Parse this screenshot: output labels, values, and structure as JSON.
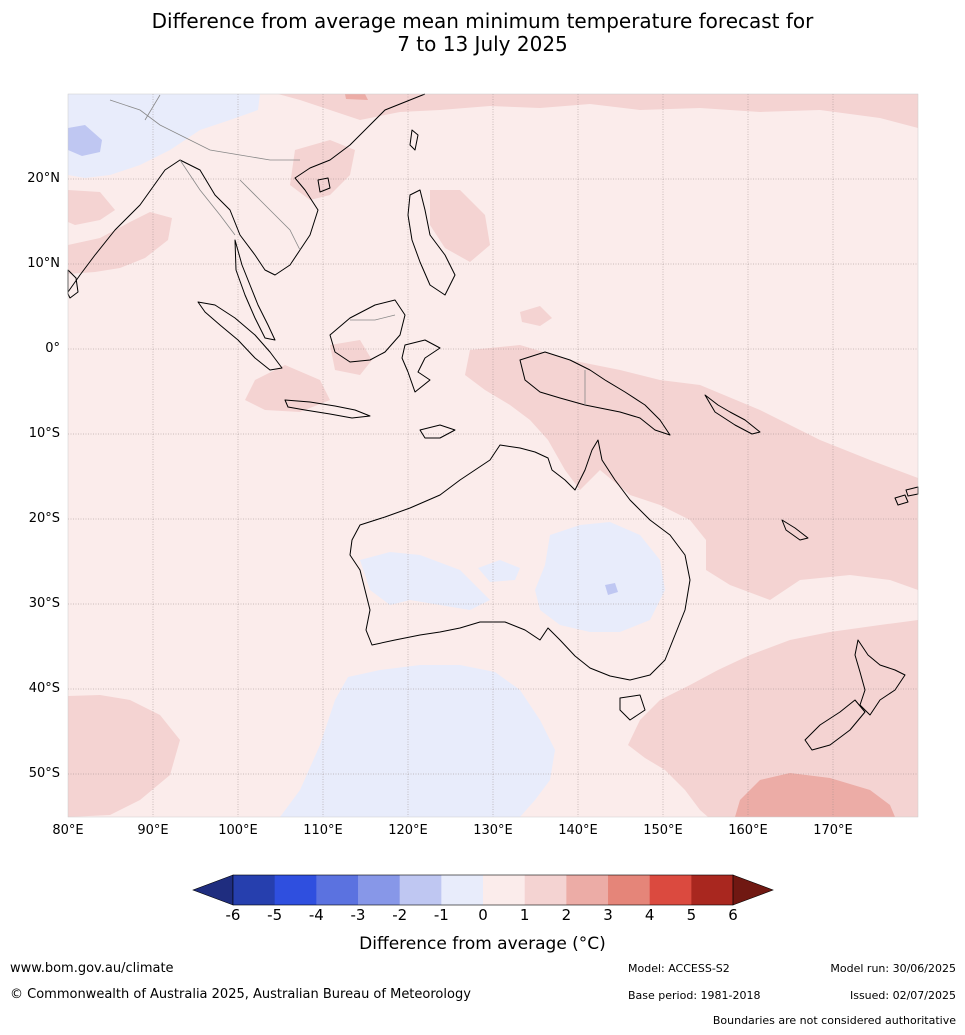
{
  "title_line1": "Difference from average mean minimum temperature forecast for",
  "title_line2": "7 to 13 July 2025",
  "lat_labels": [
    "20°N",
    "10°N",
    "0°",
    "10°S",
    "20°S",
    "30°S",
    "40°S",
    "50°S"
  ],
  "lon_labels": [
    "80°E",
    "90°E",
    "100°E",
    "110°E",
    "120°E",
    "130°E",
    "140°E",
    "150°E",
    "160°E",
    "170°E"
  ],
  "colorbar": {
    "ticks": [
      "-6",
      "-5",
      "-4",
      "-3",
      "-2",
      "-1",
      "0",
      "1",
      "2",
      "3",
      "4",
      "5",
      "6"
    ],
    "colors": [
      "#1f2d7f",
      "#263fae",
      "#2f4fdf",
      "#5b72e0",
      "#8797e8",
      "#bfc7f2",
      "#e8ecfb",
      "#fbeceb",
      "#f4d3d2",
      "#ecaca6",
      "#e58579",
      "#db4a3f",
      "#a9271f",
      "#701812"
    ],
    "label": "Difference from average (°C)"
  },
  "footer": {
    "website": "www.bom.gov.au/climate",
    "copyright": "© Commonwealth of Australia 2025, Australian Bureau of Meteorology",
    "model": "Model: ACCESS-S2",
    "base_period": "Base period: 1981-2018",
    "model_run": "Model run: 30/06/2025",
    "issued": "Issued: 02/07/2025",
    "disclaimer": "Boundaries are not considered authoritative"
  }
}
